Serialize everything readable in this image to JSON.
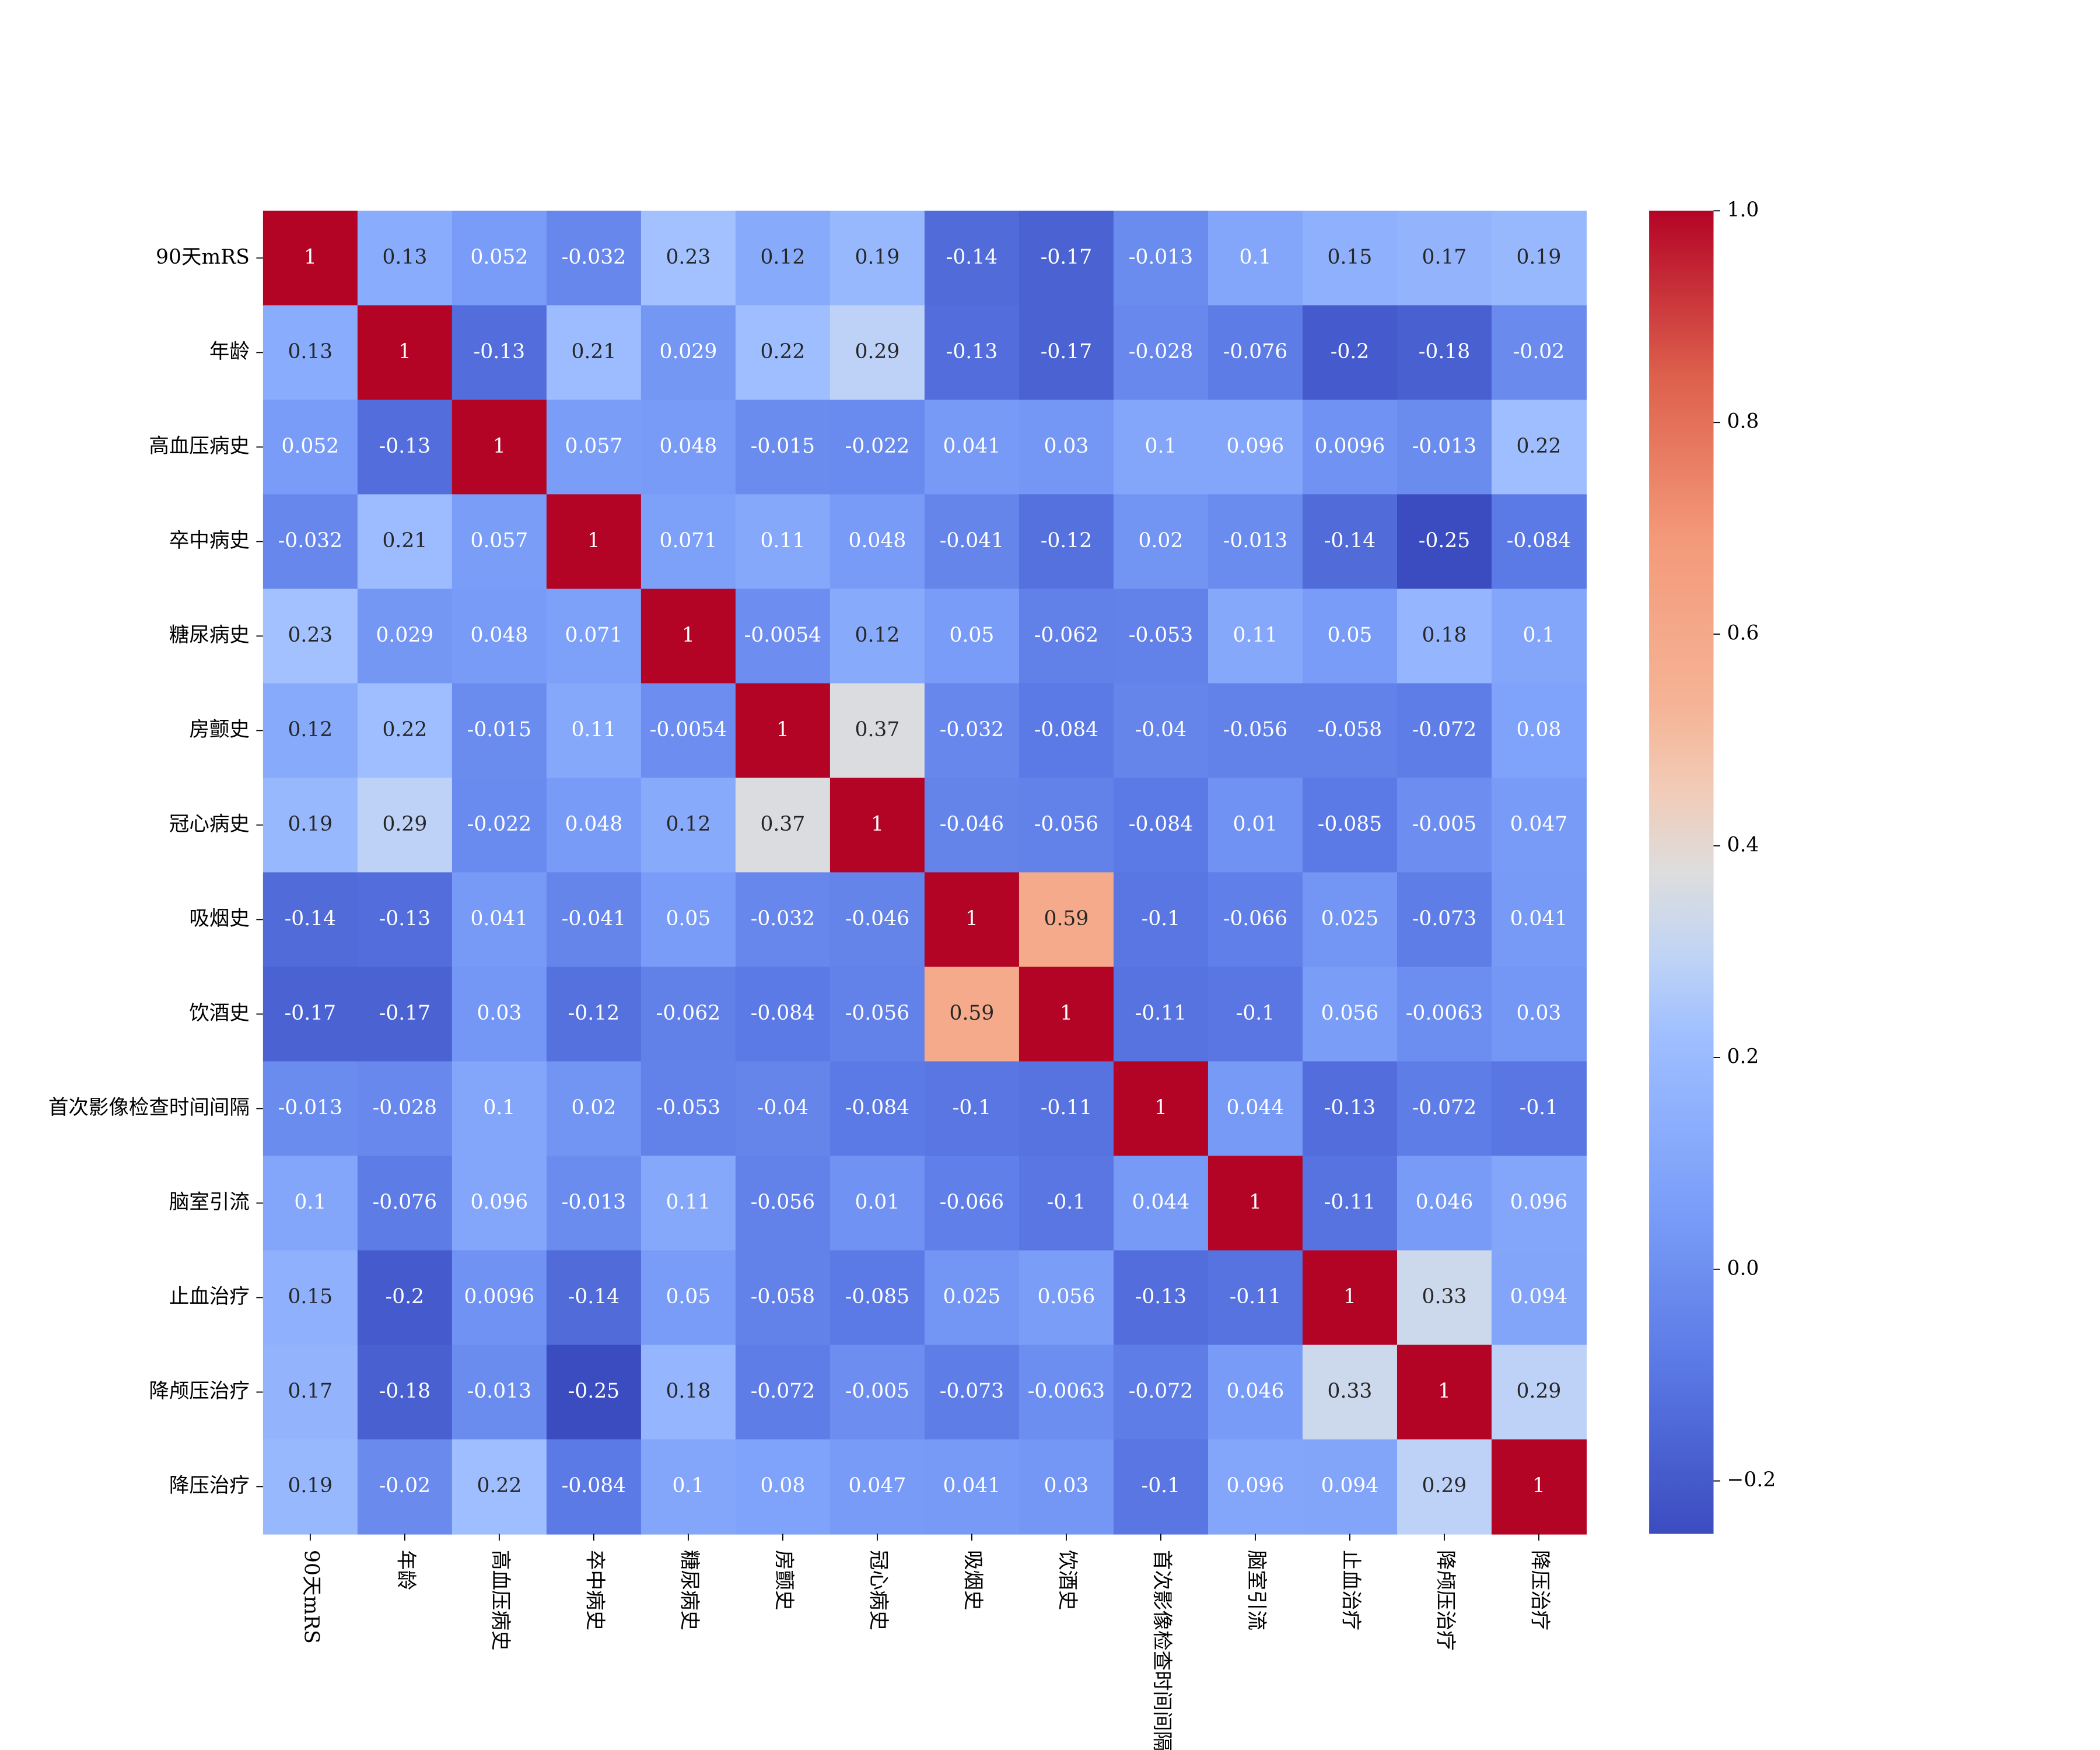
{
  "chart_data": {
    "type": "heatmap",
    "categories": [
      "90天mRS",
      "年龄",
      "高血压病史",
      "卒中病史",
      "糖尿病史",
      "房颤史",
      "冠心病史",
      "吸烟史",
      "饮酒史",
      "首次影像检查时间间隔",
      "脑室引流",
      "止血治疗",
      "降颅压治疗",
      "降压治疗"
    ],
    "values": [
      [
        1,
        0.13,
        0.052,
        -0.032,
        0.23,
        0.12,
        0.19,
        -0.14,
        -0.17,
        -0.013,
        0.1,
        0.15,
        0.17,
        0.19
      ],
      [
        0.13,
        1,
        -0.13,
        0.21,
        0.029,
        0.22,
        0.29,
        -0.13,
        -0.17,
        -0.028,
        -0.076,
        -0.2,
        -0.18,
        -0.02
      ],
      [
        0.052,
        -0.13,
        1,
        0.057,
        0.048,
        -0.015,
        -0.022,
        0.041,
        0.03,
        0.1,
        0.096,
        0.0096,
        -0.013,
        0.22
      ],
      [
        -0.032,
        0.21,
        0.057,
        1,
        0.071,
        0.11,
        0.048,
        -0.041,
        -0.12,
        0.02,
        -0.013,
        -0.14,
        -0.25,
        -0.084
      ],
      [
        0.23,
        0.029,
        0.048,
        0.071,
        1,
        -0.0054,
        0.12,
        0.05,
        -0.062,
        -0.053,
        0.11,
        0.05,
        0.18,
        0.1
      ],
      [
        0.12,
        0.22,
        -0.015,
        0.11,
        -0.0054,
        1,
        0.37,
        -0.032,
        -0.084,
        -0.04,
        -0.056,
        -0.058,
        -0.072,
        0.08
      ],
      [
        0.19,
        0.29,
        -0.022,
        0.048,
        0.12,
        0.37,
        1,
        -0.046,
        -0.056,
        -0.084,
        0.01,
        -0.085,
        -0.005,
        0.047
      ],
      [
        -0.14,
        -0.13,
        0.041,
        -0.041,
        0.05,
        -0.032,
        -0.046,
        1,
        0.59,
        -0.1,
        -0.066,
        0.025,
        -0.073,
        0.041
      ],
      [
        -0.17,
        -0.17,
        0.03,
        -0.12,
        -0.062,
        -0.084,
        -0.056,
        0.59,
        1,
        -0.11,
        -0.1,
        0.056,
        -0.0063,
        0.03
      ],
      [
        -0.013,
        -0.028,
        0.1,
        0.02,
        -0.053,
        -0.04,
        -0.084,
        -0.1,
        -0.11,
        1,
        0.044,
        -0.13,
        -0.072,
        -0.1
      ],
      [
        0.1,
        -0.076,
        0.096,
        -0.013,
        0.11,
        -0.056,
        0.01,
        -0.066,
        -0.1,
        0.044,
        1,
        -0.11,
        0.046,
        0.096
      ],
      [
        0.15,
        -0.2,
        0.0096,
        -0.14,
        0.05,
        -0.058,
        -0.085,
        0.025,
        0.056,
        -0.13,
        -0.11,
        1,
        0.33,
        0.094
      ],
      [
        0.17,
        -0.18,
        -0.013,
        -0.25,
        0.18,
        -0.072,
        -0.005,
        -0.073,
        -0.0063,
        -0.072,
        0.046,
        0.33,
        1,
        0.29
      ],
      [
        0.19,
        -0.02,
        0.22,
        -0.084,
        0.1,
        0.08,
        0.047,
        0.041,
        0.03,
        -0.1,
        0.096,
        0.094,
        0.29,
        1
      ]
    ],
    "colormap": "coolwarm",
    "zlim": [
      -0.25,
      1
    ],
    "zticks": [
      {
        "value": -0.2,
        "label": "−0.2"
      },
      {
        "value": 0.0,
        "label": "0.0"
      },
      0.2,
      0.4,
      0.6,
      0.8,
      {
        "value": 1.0,
        "label": "1.0"
      }
    ]
  }
}
